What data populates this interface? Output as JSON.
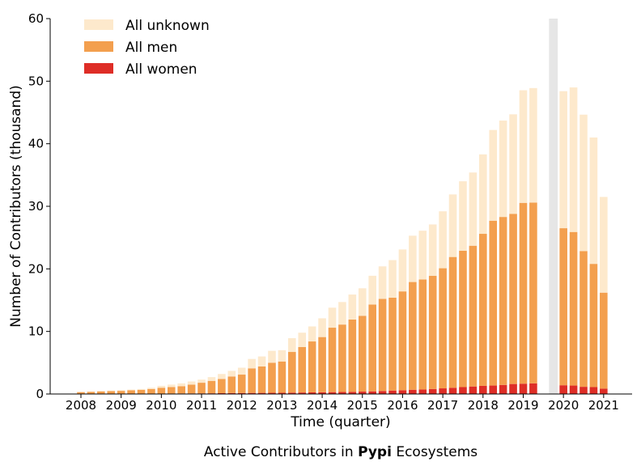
{
  "caption": {
    "prefix": "Active Contributors in ",
    "bold": "Pypi",
    "suffix": " Ecosystems"
  },
  "chart_data": {
    "type": "bar",
    "stacked": true,
    "xlabel": "Time (quarter)",
    "ylabel": "Number of Contributors (thousand)",
    "ylim": [
      0,
      60
    ],
    "yticks": [
      0,
      10,
      20,
      30,
      40,
      50,
      60
    ],
    "year_ticks": [
      "2008",
      "2009",
      "2010",
      "2011",
      "2012",
      "2013",
      "2014",
      "2015",
      "2016",
      "2017",
      "2018",
      "2019",
      "2020",
      "2021"
    ],
    "legend_position": "top-left",
    "grid": false,
    "colors": {
      "All unknown": "#fde9cc",
      "All men": "#f39f4e",
      "All women": "#de2d26",
      "gap_band": "#e6e6e6"
    },
    "gap_band_between": [
      "2019 Q3",
      "2020 Q1"
    ],
    "categories": [
      "2008 Q1",
      "2008 Q2",
      "2008 Q3",
      "2008 Q4",
      "2009 Q1",
      "2009 Q2",
      "2009 Q3",
      "2009 Q4",
      "2010 Q1",
      "2010 Q2",
      "2010 Q3",
      "2010 Q4",
      "2011 Q1",
      "2011 Q2",
      "2011 Q3",
      "2011 Q4",
      "2012 Q1",
      "2012 Q2",
      "2012 Q3",
      "2012 Q4",
      "2013 Q1",
      "2013 Q2",
      "2013 Q3",
      "2013 Q4",
      "2014 Q1",
      "2014 Q2",
      "2014 Q3",
      "2014 Q4",
      "2015 Q1",
      "2015 Q2",
      "2015 Q3",
      "2015 Q4",
      "2016 Q1",
      "2016 Q2",
      "2016 Q3",
      "2016 Q4",
      "2017 Q1",
      "2017 Q2",
      "2017 Q3",
      "2017 Q4",
      "2018 Q1",
      "2018 Q2",
      "2018 Q3",
      "2018 Q4",
      "2019 Q1",
      "2019 Q2",
      "2020 Q1",
      "2020 Q2",
      "2020 Q3",
      "2020 Q4",
      "2021 Q1"
    ],
    "series": [
      {
        "name": "All women",
        "values": [
          0.02,
          0.02,
          0.03,
          0.03,
          0.03,
          0.04,
          0.04,
          0.05,
          0.06,
          0.07,
          0.08,
          0.09,
          0.1,
          0.11,
          0.13,
          0.15,
          0.16,
          0.17,
          0.18,
          0.19,
          0.2,
          0.22,
          0.24,
          0.26,
          0.28,
          0.3,
          0.32,
          0.34,
          0.38,
          0.42,
          0.48,
          0.55,
          0.6,
          0.68,
          0.72,
          0.8,
          0.9,
          1.0,
          1.1,
          1.2,
          1.3,
          1.35,
          1.45,
          1.6,
          1.65,
          1.7,
          1.4,
          1.35,
          1.15,
          1.1,
          0.85
        ]
      },
      {
        "name": "All men",
        "values": [
          0.28,
          0.33,
          0.37,
          0.42,
          0.47,
          0.56,
          0.61,
          0.75,
          0.94,
          1.03,
          1.17,
          1.41,
          1.7,
          1.99,
          2.27,
          2.65,
          2.94,
          3.93,
          4.22,
          4.81,
          5.0,
          6.5,
          7.26,
          8.14,
          8.82,
          10.3,
          10.78,
          11.56,
          12.12,
          13.88,
          14.72,
          14.85,
          15.8,
          17.22,
          17.58,
          18.1,
          19.2,
          20.9,
          21.8,
          22.5,
          24.3,
          26.35,
          26.85,
          27.2,
          28.9,
          28.9,
          25.1,
          24.55,
          21.7,
          19.7,
          15.35
        ]
      },
      {
        "name": "All unknown",
        "values": [
          0.05,
          0.05,
          0.1,
          0.1,
          0.1,
          0.1,
          0.15,
          0.2,
          0.3,
          0.4,
          0.45,
          0.5,
          0.5,
          0.6,
          0.8,
          0.9,
          1.1,
          1.5,
          1.6,
          1.9,
          1.8,
          2.2,
          2.3,
          2.4,
          3.0,
          3.2,
          3.6,
          4.0,
          4.4,
          4.6,
          5.2,
          6.0,
          6.7,
          7.4,
          7.8,
          8.2,
          9.1,
          10.0,
          11.1,
          11.7,
          12.7,
          14.5,
          15.4,
          15.9,
          18.0,
          18.3,
          21.9,
          23.1,
          21.8,
          20.2,
          15.3
        ]
      }
    ]
  }
}
